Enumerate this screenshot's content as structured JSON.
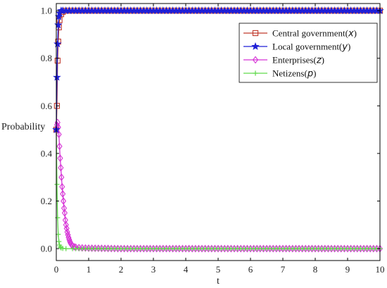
{
  "chart_data": {
    "type": "line",
    "xlabel": "t",
    "ylabel": "Probability",
    "xlim": [
      0,
      10
    ],
    "ylim": [
      -0.05,
      1.03
    ],
    "xticks": [
      "0",
      "1",
      "2",
      "3",
      "4",
      "5",
      "6",
      "7",
      "8",
      "9",
      "10"
    ],
    "yticks": [
      "0.0",
      "0.2",
      "0.4",
      "0.6",
      "0.8",
      "1.0"
    ],
    "grid": false,
    "legend_position": "top-right",
    "series": [
      {
        "name": "Central government(x)",
        "legend_main": "Central government(",
        "legend_var": "x",
        "color": "#c0392b",
        "marker": "square",
        "x": [
          0,
          0.02,
          0.04,
          0.06,
          0.08,
          0.1,
          0.15,
          0.2,
          0.3,
          0.4,
          0.5,
          1,
          2,
          3,
          4,
          5,
          6,
          7,
          8,
          9,
          10
        ],
        "y": [
          0.5,
          0.6,
          0.79,
          0.87,
          0.93,
          0.96,
          0.985,
          0.995,
          1.0,
          1.0,
          1.0,
          1.0,
          1.0,
          1.0,
          1.0,
          1.0,
          1.0,
          1.0,
          1.0,
          1.0,
          1.0
        ]
      },
      {
        "name": "Local government(y)",
        "legend_main": "Local government(",
        "legend_var": "y",
        "color": "#1f1fd6",
        "marker": "star",
        "x": [
          0,
          0.02,
          0.04,
          0.06,
          0.08,
          0.1,
          0.15,
          0.2,
          0.3,
          0.4,
          0.5,
          1,
          2,
          3,
          4,
          5,
          6,
          7,
          8,
          9,
          10
        ],
        "y": [
          0.5,
          0.72,
          0.86,
          0.94,
          0.975,
          0.99,
          1.0,
          1.0,
          1.0,
          1.0,
          1.0,
          1.0,
          1.0,
          1.0,
          1.0,
          1.0,
          1.0,
          1.0,
          1.0,
          1.0,
          1.0
        ]
      },
      {
        "name": "Enterprises(z)",
        "legend_main": "Enterprises(",
        "legend_var": "z",
        "color": "#d633d6",
        "marker": "diamond",
        "x": [
          0,
          0.02,
          0.04,
          0.06,
          0.08,
          0.1,
          0.12,
          0.14,
          0.16,
          0.18,
          0.2,
          0.22,
          0.24,
          0.26,
          0.28,
          0.3,
          0.32,
          0.34,
          0.36,
          0.38,
          0.4,
          0.42,
          0.44,
          0.46,
          0.48,
          0.5,
          0.55,
          0.6,
          0.7,
          0.8,
          1,
          2,
          3,
          4,
          5,
          6,
          7,
          8,
          9,
          10
        ],
        "y": [
          0.5,
          0.52,
          0.53,
          0.51,
          0.48,
          0.43,
          0.38,
          0.34,
          0.3,
          0.26,
          0.23,
          0.2,
          0.17,
          0.15,
          0.12,
          0.1,
          0.085,
          0.07,
          0.058,
          0.047,
          0.038,
          0.03,
          0.024,
          0.019,
          0.015,
          0.012,
          0.008,
          0.006,
          0.004,
          0.003,
          0.002,
          0.0,
          0.0,
          0.0,
          0.0,
          0.0,
          0.0,
          0.0,
          0.0,
          0.0
        ]
      },
      {
        "name": "Netizens(p)",
        "legend_main": "Netizens(",
        "legend_var": "p",
        "color": "#5fd94a",
        "marker": "plus",
        "x": [
          0,
          0.02,
          0.04,
          0.06,
          0.08,
          0.1,
          0.12,
          0.15,
          0.2,
          0.3,
          0.5,
          1,
          2,
          3,
          4,
          5,
          6,
          7,
          8,
          9,
          10
        ],
        "y": [
          0.5,
          0.27,
          0.13,
          0.06,
          0.03,
          0.015,
          0.007,
          0.003,
          0.001,
          0.0,
          0.0,
          0.0,
          0.0,
          0.0,
          0.0,
          0.0,
          0.0,
          0.0,
          0.0,
          0.0,
          0.0
        ]
      }
    ]
  }
}
